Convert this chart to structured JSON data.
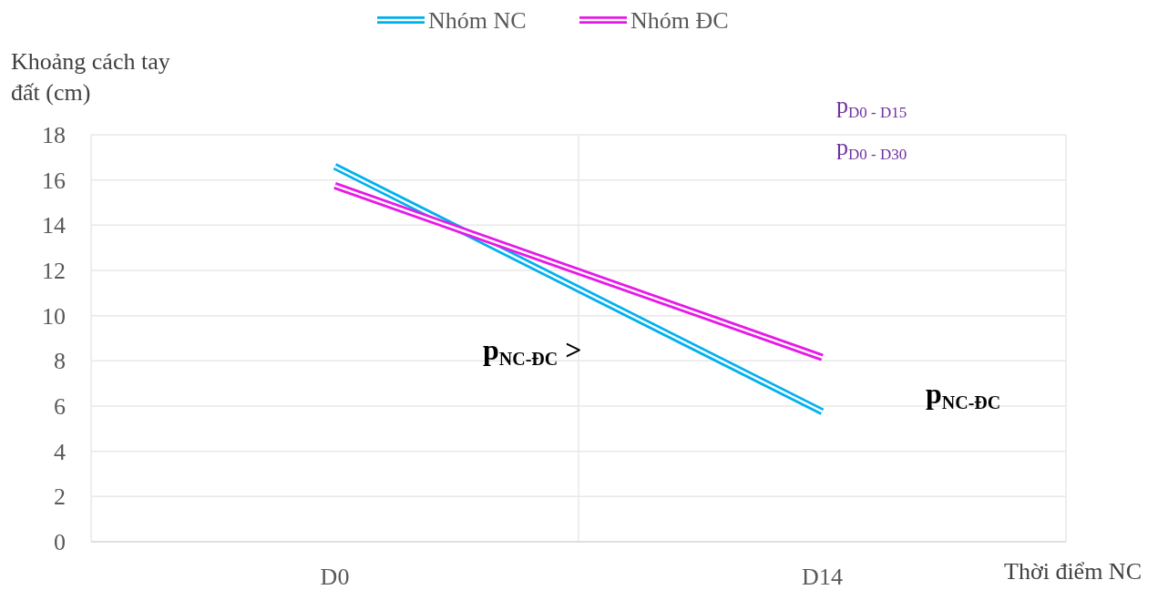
{
  "chart_data": {
    "type": "line",
    "ylabel": "Khoảng cách tay đất (cm)",
    "xlabel": "Thời điểm NC",
    "categories": [
      "D0",
      "D14"
    ],
    "series": [
      {
        "name": "Nhóm NC",
        "color": "#00b0f0",
        "values": [
          16.6,
          5.75
        ]
      },
      {
        "name": "Nhóm ĐC",
        "color": "#e619e6",
        "values": [
          15.75,
          8.15
        ]
      }
    ],
    "ylim": [
      0,
      18
    ],
    "yticks": [
      0,
      2,
      4,
      6,
      8,
      10,
      12,
      14,
      16,
      18
    ],
    "grid": true,
    "legend": "top",
    "marker": "none",
    "line_style": "solid",
    "annotations": [
      "p$_{D0 - D15}$",
      "p$_{D0 - D30}$",
      "p$_{NC-ĐC}$ >",
      "p$_{NC-ĐC}$"
    ]
  }
}
